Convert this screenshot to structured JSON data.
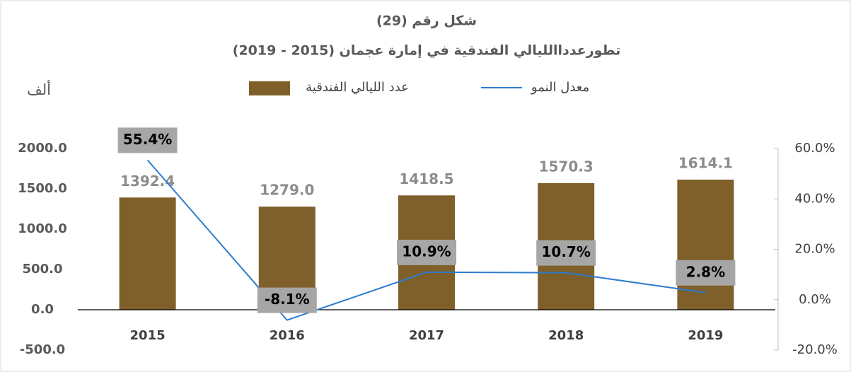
{
  "chart_data": {
    "type": "bar_line",
    "title": "شكل رقم (29)",
    "subtitle": "تطورعدداالليالي الفندقية في إمارة عجمان (2015 - 2019)",
    "y_axis_label": "ألف",
    "categories": [
      "2015",
      "2016",
      "2017",
      "2018",
      "2019"
    ],
    "series": [
      {
        "name": "عدد الليالي الفندقية",
        "type": "bar",
        "color": "#7f5f2a",
        "values": [
          1392.4,
          1279.0,
          1418.5,
          1570.3,
          1614.1
        ],
        "value_labels": [
          "1392.4",
          "1279.0",
          "1418.5",
          "1570.3",
          "1614.1"
        ]
      },
      {
        "name": "معدل النمو",
        "type": "line",
        "axis": "y2",
        "color": "#2e7bcf",
        "values": [
          55.4,
          -8.1,
          10.9,
          10.7,
          2.8
        ],
        "value_labels": [
          "55.4%",
          "-8.1%",
          "10.9%",
          "10.7%",
          "2.8%"
        ]
      }
    ],
    "ylim": [
      -500,
      2000
    ],
    "yticks": [
      {
        "value": -500,
        "label": "-500.0"
      },
      {
        "value": 0,
        "label": "0.0"
      },
      {
        "value": 500,
        "label": "500.0"
      },
      {
        "value": 1000,
        "label": "1000.0"
      },
      {
        "value": 1500,
        "label": "1500.0"
      },
      {
        "value": 2000,
        "label": "2000.0"
      }
    ],
    "y2lim": [
      -20,
      60
    ],
    "y2ticks": [
      {
        "value": -20,
        "label": "-20.0%"
      },
      {
        "value": 0,
        "label": "0.0%"
      },
      {
        "value": 20,
        "label": "20.0%"
      },
      {
        "value": 40,
        "label": "40.0%"
      },
      {
        "value": 60,
        "label": "60.0%"
      }
    ]
  }
}
